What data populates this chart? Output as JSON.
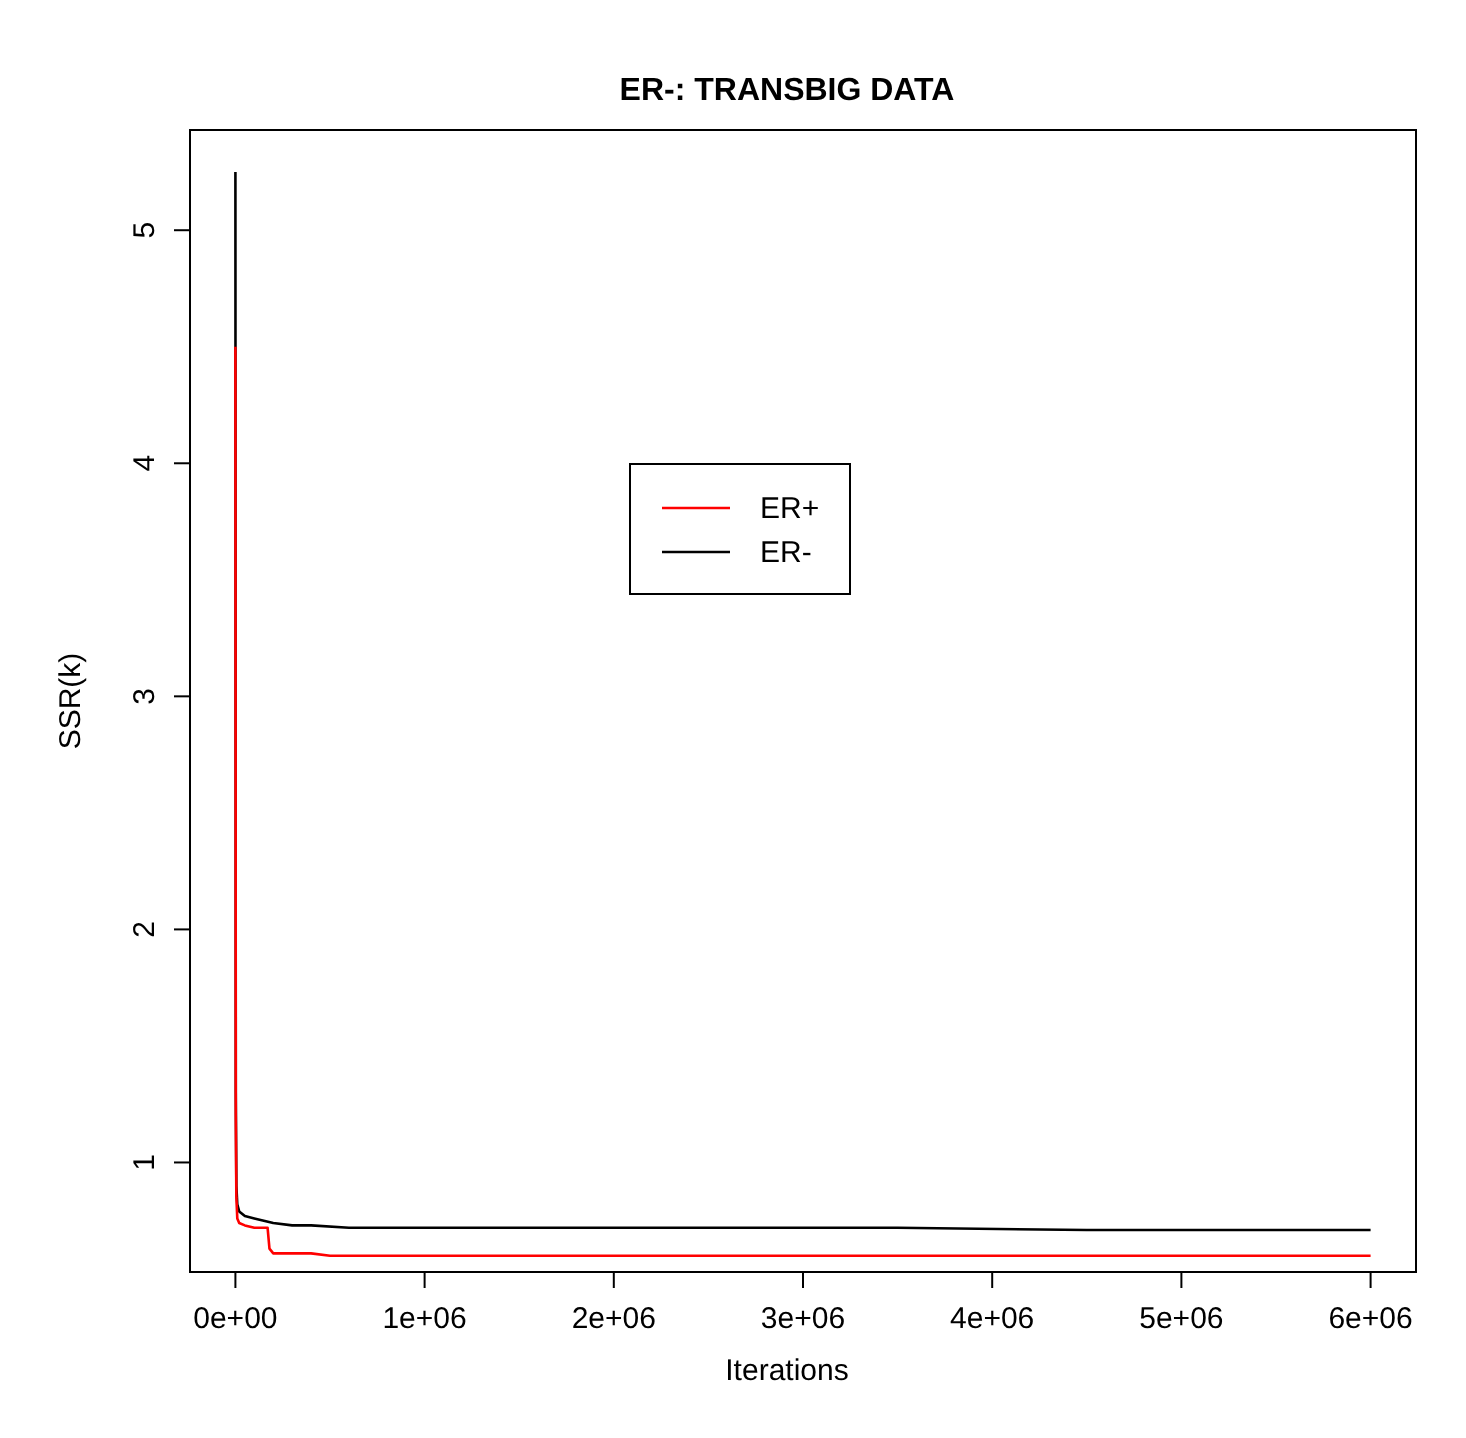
{
  "chart_data": {
    "type": "line",
    "title": "ER-: TRANSBIG DATA",
    "xlabel": "Iterations",
    "ylabel": "SSR(k)",
    "xlim": [
      -240000,
      6240000
    ],
    "ylim": [
      0.53,
      5.43
    ],
    "xticks": [
      {
        "value": 0,
        "label": "0e+00"
      },
      {
        "value": 1000000,
        "label": "1e+06"
      },
      {
        "value": 2000000,
        "label": "2e+06"
      },
      {
        "value": 3000000,
        "label": "3e+06"
      },
      {
        "value": 4000000,
        "label": "4e+06"
      },
      {
        "value": 5000000,
        "label": "5e+06"
      },
      {
        "value": 6000000,
        "label": "6e+06"
      }
    ],
    "yticks": [
      1,
      2,
      3,
      4,
      5
    ],
    "legend": "top",
    "grid": false,
    "series": [
      {
        "name": "ER+",
        "color": "#ff0000",
        "x": [
          0,
          2000,
          5000,
          10000,
          20000,
          50000,
          100000,
          170000,
          180000,
          200000,
          400000,
          500000,
          800000,
          2000000,
          4000000,
          6000000
        ],
        "values": [
          4.5,
          1.2,
          0.85,
          0.76,
          0.74,
          0.73,
          0.72,
          0.72,
          0.63,
          0.61,
          0.61,
          0.6,
          0.6,
          0.6,
          0.6,
          0.6
        ]
      },
      {
        "name": "ER-",
        "color": "#000000",
        "x": [
          0,
          2000,
          5000,
          10000,
          20000,
          50000,
          100000,
          200000,
          300000,
          400000,
          600000,
          800000,
          1500000,
          2500000,
          3500000,
          4500000,
          5500000,
          6000000
        ],
        "values": [
          5.25,
          1.3,
          0.9,
          0.82,
          0.79,
          0.77,
          0.76,
          0.74,
          0.73,
          0.73,
          0.72,
          0.72,
          0.72,
          0.72,
          0.72,
          0.71,
          0.71,
          0.71
        ]
      }
    ]
  }
}
